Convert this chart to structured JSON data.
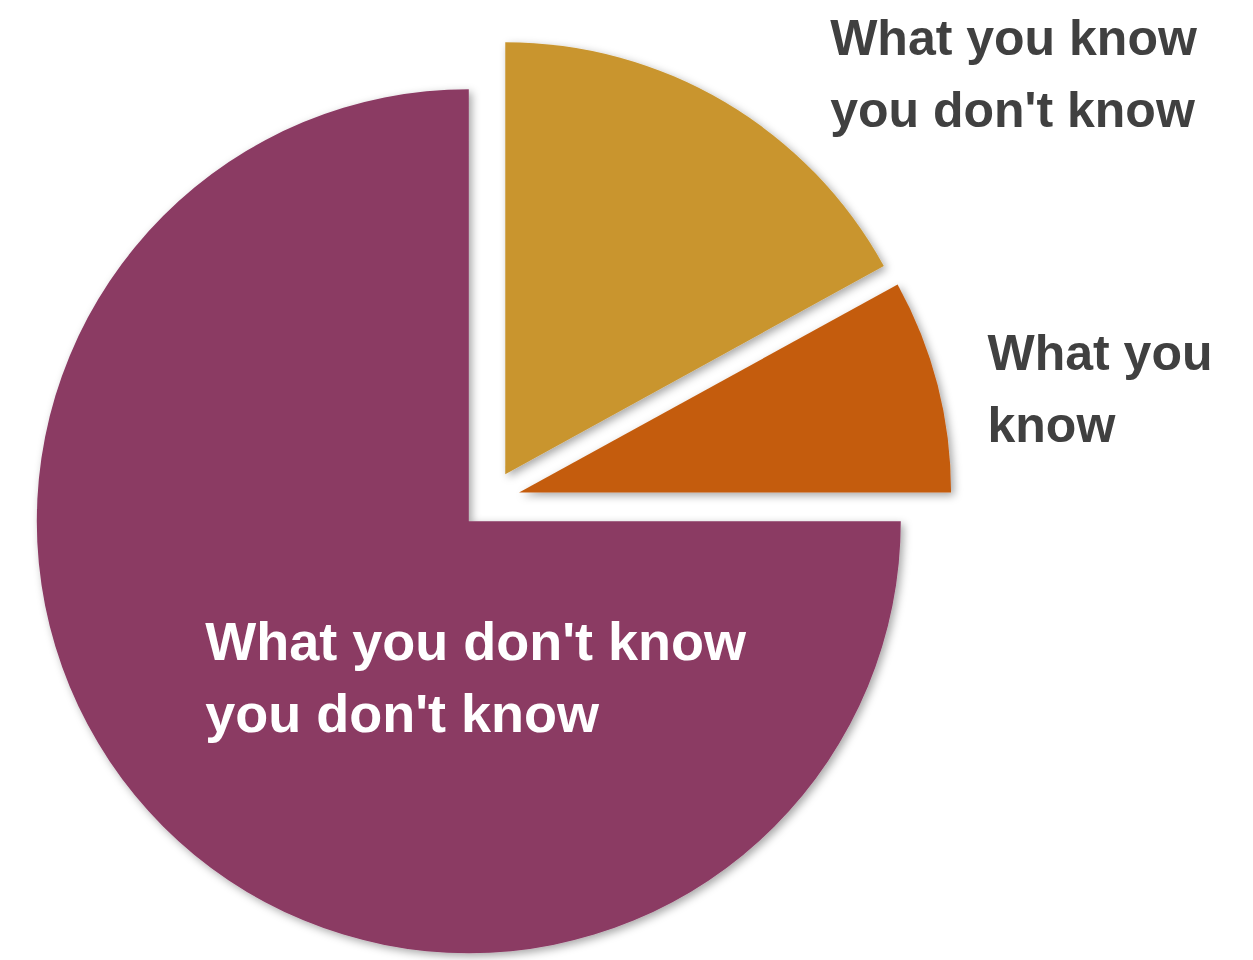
{
  "chart_data": {
    "type": "pie",
    "categories": [
      "What you know you don't know",
      "What you know",
      "What you don't know you don't know"
    ],
    "values": [
      17,
      8,
      75
    ],
    "colors": [
      "#c9952f",
      "#c45c10",
      "#8b3a64"
    ]
  }
}
